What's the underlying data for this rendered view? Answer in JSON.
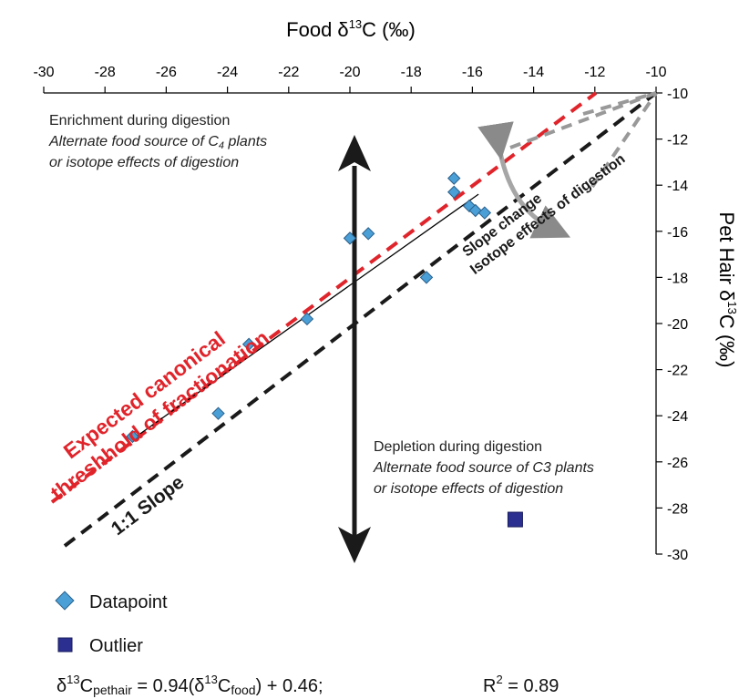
{
  "chart_data": {
    "type": "scatter",
    "x_axis": {
      "label_main": "Food δ",
      "label_sup": "13",
      "label_tail": "C (‰)",
      "range": [
        -30,
        -10
      ],
      "ticks": [
        -30,
        -28,
        -26,
        -24,
        -22,
        -20,
        -18,
        -16,
        -14,
        -12,
        -10
      ],
      "position": "top"
    },
    "y_axis": {
      "label_main": "Pet Hair δ",
      "label_sup": "13",
      "label_tail": "C  (‰)",
      "range": [
        -30,
        -10
      ],
      "ticks": [
        -10,
        -12,
        -14,
        -16,
        -18,
        -20,
        -22,
        -24,
        -26,
        -28,
        -30
      ],
      "position": "right"
    },
    "grid": false,
    "series": [
      {
        "name": "Datapoint",
        "marker": "diamond",
        "color": "#4a9fd6",
        "points": [
          {
            "x": -27.1,
            "y": -24.9
          },
          {
            "x": -24.3,
            "y": -23.9
          },
          {
            "x": -23.3,
            "y": -20.9
          },
          {
            "x": -21.4,
            "y": -19.8
          },
          {
            "x": -20.0,
            "y": -16.3
          },
          {
            "x": -19.4,
            "y": -16.1
          },
          {
            "x": -17.5,
            "y": -18.0
          },
          {
            "x": -16.6,
            "y": -13.7
          },
          {
            "x": -16.6,
            "y": -14.3
          },
          {
            "x": -16.1,
            "y": -14.9
          },
          {
            "x": -15.9,
            "y": -15.1
          },
          {
            "x": -15.6,
            "y": -15.2
          }
        ]
      },
      {
        "name": "Outlier",
        "marker": "square",
        "color": "#2b2f8f",
        "points": [
          {
            "x": -14.6,
            "y": -28.5
          }
        ]
      }
    ],
    "lines": {
      "regression": {
        "slope": 0.94,
        "intercept": 0.46,
        "x_from": -27.1,
        "x_to": -15.8,
        "color": "#000000"
      },
      "one_to_one": {
        "label": "1:1 Slope",
        "color": "#1a1a1a"
      },
      "canonical": {
        "label_line1": "Expected canonical",
        "label_line2": "threshhold of fractionation",
        "color": "#e0242b"
      },
      "slope_change": {
        "label1": "Slope change",
        "label2": "Isotope effects of digestion",
        "color": "#999999"
      }
    },
    "annotations": {
      "enrichment_title": "Enrichment during digestion",
      "enrichment_line1": "Alternate food source of C",
      "enrichment_line1_sub": "4",
      "enrichment_line1_tail": " plants",
      "enrichment_line2": "or isotope effects of digestion",
      "depletion_title": "Depletion during digestion",
      "depletion_line1": "Alternate food source of C3 plants",
      "depletion_line2": "or isotope effects of digestion"
    },
    "legend": {
      "placement": "bottom-left",
      "datapoint_label": "Datapoint",
      "outlier_label": "Outlier"
    },
    "equation": {
      "d": "δ",
      "sup1": "13",
      "c1": "C",
      "sub1": "pethair",
      "mid": " = 0.94(δ",
      "sup2": "13",
      "c2": "C",
      "sub2": "food",
      "tail": ") + 0.46;",
      "r_main": "R",
      "r_sup": "2",
      "r_tail": " = 0.89"
    },
    "colors": {
      "axis": "#000000",
      "datapoint": "#4a9fd6",
      "outlier": "#2b2f8f",
      "canonical": "#e0242b",
      "gray_arrow": "#a6a6a6"
    }
  }
}
